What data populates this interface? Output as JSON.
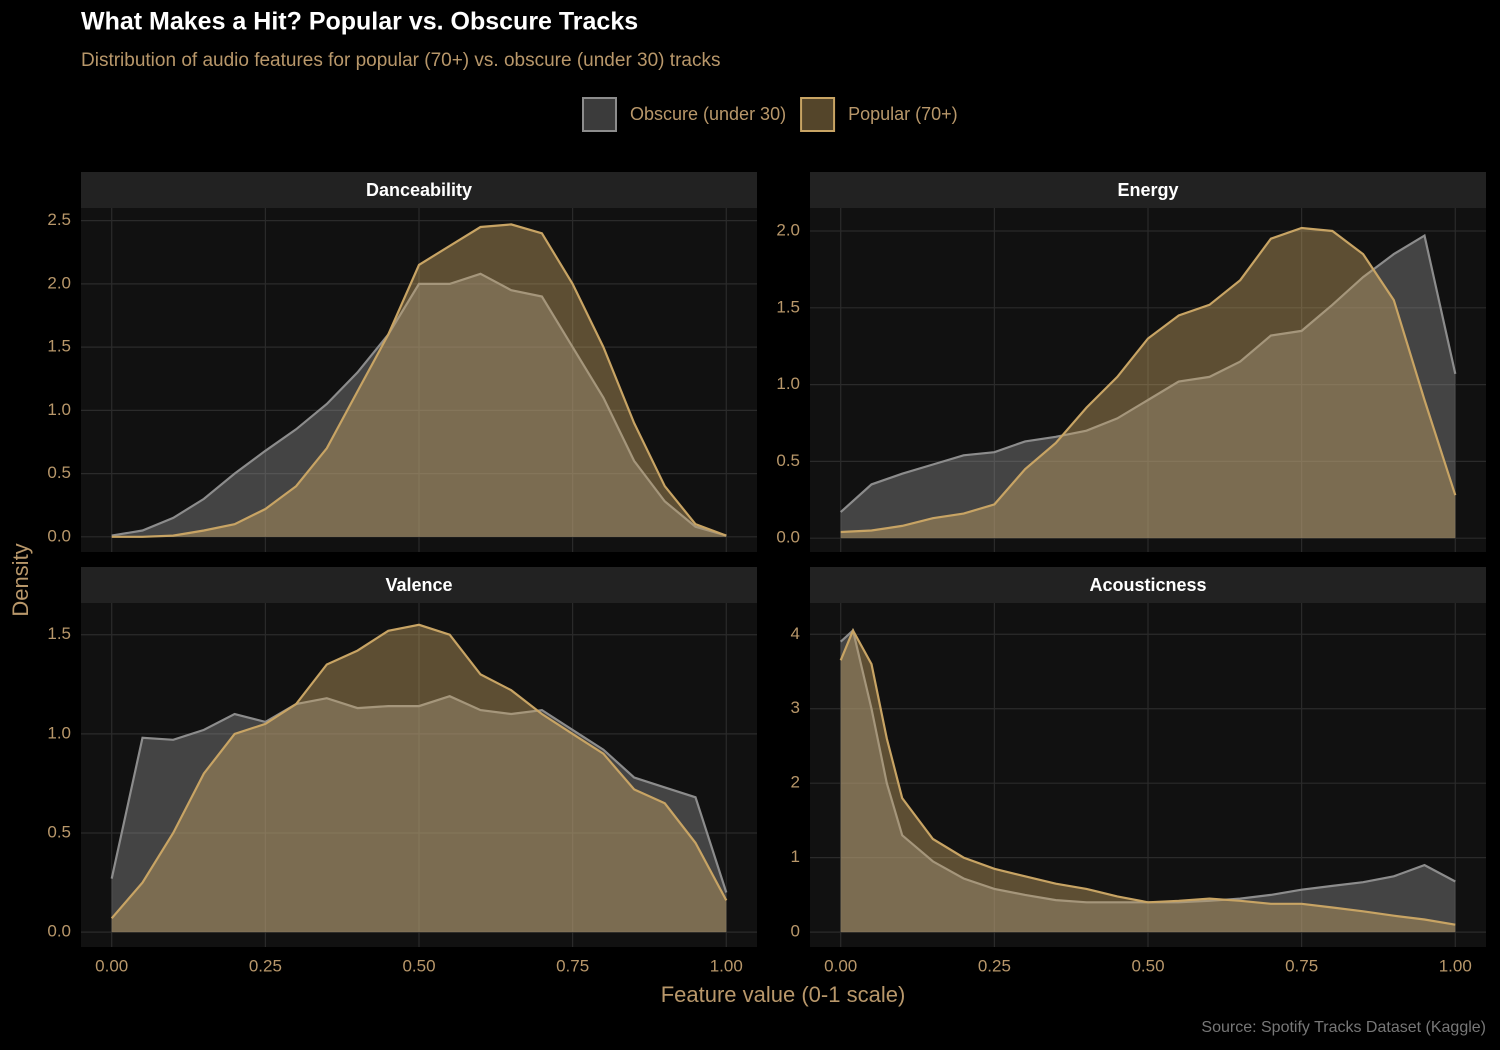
{
  "title": "What Makes a Hit? Popular vs. Obscure Tracks",
  "subtitle": "Distribution of audio features for popular (70+) vs. obscure (under 30) tracks",
  "x_label": "Feature value (0-1 scale)",
  "y_label": "Density",
  "caption": "Source: Spotify Tracks Dataset (Kaggle)",
  "legend_position": "top",
  "chart_data": [
    {
      "type": "area",
      "title": "Danceability",
      "x": [
        0,
        0.05,
        0.1,
        0.15,
        0.2,
        0.25,
        0.3,
        0.35,
        0.4,
        0.45,
        0.5,
        0.55,
        0.6,
        0.65,
        0.7,
        0.75,
        0.8,
        0.85,
        0.9,
        0.95,
        1
      ],
      "series": [
        {
          "name": "Obscure (under 30)",
          "color": "#8c8c8c",
          "values": [
            0.01,
            0.05,
            0.15,
            0.3,
            0.5,
            0.68,
            0.85,
            1.05,
            1.3,
            1.6,
            2.0,
            2.0,
            2.08,
            1.95,
            1.9,
            1.5,
            1.1,
            0.6,
            0.28,
            0.08,
            0.01
          ]
        },
        {
          "name": "Popular (70+)",
          "color": "#c8a464",
          "values": [
            0,
            0,
            0.01,
            0.05,
            0.1,
            0.22,
            0.4,
            0.7,
            1.15,
            1.6,
            2.15,
            2.3,
            2.45,
            2.47,
            2.4,
            2.0,
            1.5,
            0.9,
            0.4,
            0.1,
            0.01
          ]
        }
      ],
      "xlim": [
        -0.05,
        1.05
      ],
      "xticks": [
        {
          "value": 0,
          "label": "0.00"
        },
        0.25,
        {
          "value": 0.5,
          "label": "0.50"
        },
        0.75,
        {
          "value": 1,
          "label": "1.00"
        }
      ],
      "ylim": [
        -0.12,
        2.6
      ],
      "yticks": [
        {
          "value": 0,
          "label": "0.0"
        },
        0.5,
        {
          "value": 1,
          "label": "1.0"
        },
        1.5,
        {
          "value": 2,
          "label": "2.0"
        },
        2.5
      ],
      "grid": true
    },
    {
      "type": "area",
      "title": "Energy",
      "x": [
        0,
        0.05,
        0.1,
        0.15,
        0.2,
        0.25,
        0.3,
        0.35,
        0.4,
        0.45,
        0.5,
        0.55,
        0.6,
        0.65,
        0.7,
        0.75,
        0.8,
        0.85,
        0.9,
        0.95,
        1
      ],
      "series": [
        {
          "name": "Obscure (under 30)",
          "color": "#8c8c8c",
          "values": [
            0.17,
            0.35,
            0.42,
            0.48,
            0.54,
            0.56,
            0.63,
            0.66,
            0.7,
            0.78,
            0.9,
            1.02,
            1.05,
            1.15,
            1.32,
            1.35,
            1.52,
            1.7,
            1.85,
            1.97,
            1.07
          ]
        },
        {
          "name": "Popular (70+)",
          "color": "#c8a464",
          "values": [
            0.04,
            0.05,
            0.08,
            0.13,
            0.16,
            0.22,
            0.45,
            0.62,
            0.85,
            1.05,
            1.3,
            1.45,
            1.52,
            1.68,
            1.95,
            2.02,
            2.0,
            1.85,
            1.55,
            0.9,
            0.28
          ]
        }
      ],
      "xlim": [
        -0.05,
        1.05
      ],
      "xticks": [
        {
          "value": 0,
          "label": "0.00"
        },
        0.25,
        {
          "value": 0.5,
          "label": "0.50"
        },
        0.75,
        {
          "value": 1,
          "label": "1.00"
        }
      ],
      "ylim": [
        -0.09,
        2.15
      ],
      "yticks": [
        {
          "value": 0,
          "label": "0.0"
        },
        0.5,
        {
          "value": 1,
          "label": "1.0"
        },
        1.5,
        {
          "value": 2,
          "label": "2.0"
        }
      ],
      "grid": true
    },
    {
      "type": "area",
      "title": "Valence",
      "x": [
        0,
        0.05,
        0.1,
        0.15,
        0.2,
        0.25,
        0.3,
        0.35,
        0.4,
        0.45,
        0.5,
        0.55,
        0.6,
        0.65,
        0.7,
        0.75,
        0.8,
        0.85,
        0.9,
        0.95,
        1
      ],
      "series": [
        {
          "name": "Obscure (under 30)",
          "color": "#8c8c8c",
          "values": [
            0.27,
            0.98,
            0.97,
            1.02,
            1.1,
            1.06,
            1.15,
            1.18,
            1.13,
            1.14,
            1.14,
            1.19,
            1.12,
            1.1,
            1.12,
            1.02,
            0.92,
            0.78,
            0.73,
            0.68,
            0.2
          ]
        },
        {
          "name": "Popular (70+)",
          "color": "#c8a464",
          "values": [
            0.07,
            0.25,
            0.5,
            0.8,
            1.0,
            1.05,
            1.15,
            1.35,
            1.42,
            1.52,
            1.55,
            1.5,
            1.3,
            1.22,
            1.1,
            1.0,
            0.9,
            0.72,
            0.65,
            0.45,
            0.16
          ]
        }
      ],
      "xlim": [
        -0.05,
        1.05
      ],
      "xticks": [
        {
          "value": 0,
          "label": "0.00"
        },
        0.25,
        {
          "value": 0.5,
          "label": "0.50"
        },
        0.75,
        {
          "value": 1,
          "label": "1.00"
        }
      ],
      "ylim": [
        -0.075,
        1.66
      ],
      "yticks": [
        {
          "value": 0,
          "label": "0.0"
        },
        0.5,
        {
          "value": 1,
          "label": "1.0"
        },
        1.5
      ],
      "grid": true
    },
    {
      "type": "area",
      "title": "Acousticness",
      "x": [
        0,
        0.02,
        0.05,
        0.075,
        0.1,
        0.15,
        0.2,
        0.25,
        0.3,
        0.35,
        0.4,
        0.45,
        0.5,
        0.55,
        0.6,
        0.65,
        0.7,
        0.75,
        0.8,
        0.85,
        0.9,
        0.95,
        1
      ],
      "series": [
        {
          "name": "Obscure (under 30)",
          "color": "#8c8c8c",
          "values": [
            3.9,
            4.05,
            3.0,
            2.0,
            1.3,
            0.95,
            0.72,
            0.58,
            0.5,
            0.43,
            0.4,
            0.4,
            0.4,
            0.4,
            0.42,
            0.45,
            0.5,
            0.57,
            0.62,
            0.67,
            0.75,
            0.9,
            0.68
          ]
        },
        {
          "name": "Popular (70+)",
          "color": "#c8a464",
          "values": [
            3.65,
            4.05,
            3.6,
            2.6,
            1.8,
            1.25,
            1.0,
            0.85,
            0.75,
            0.65,
            0.58,
            0.48,
            0.4,
            0.42,
            0.45,
            0.42,
            0.38,
            0.38,
            0.33,
            0.28,
            0.22,
            0.17,
            0.1
          ]
        }
      ],
      "xlim": [
        -0.05,
        1.05
      ],
      "xticks": [
        {
          "value": 0,
          "label": "0.00"
        },
        0.25,
        {
          "value": 0.5,
          "label": "0.50"
        },
        0.75,
        {
          "value": 1,
          "label": "1.00"
        }
      ],
      "ylim": [
        -0.2,
        4.42
      ],
      "yticks": [
        0,
        1,
        2,
        3,
        4
      ],
      "grid": true
    }
  ]
}
